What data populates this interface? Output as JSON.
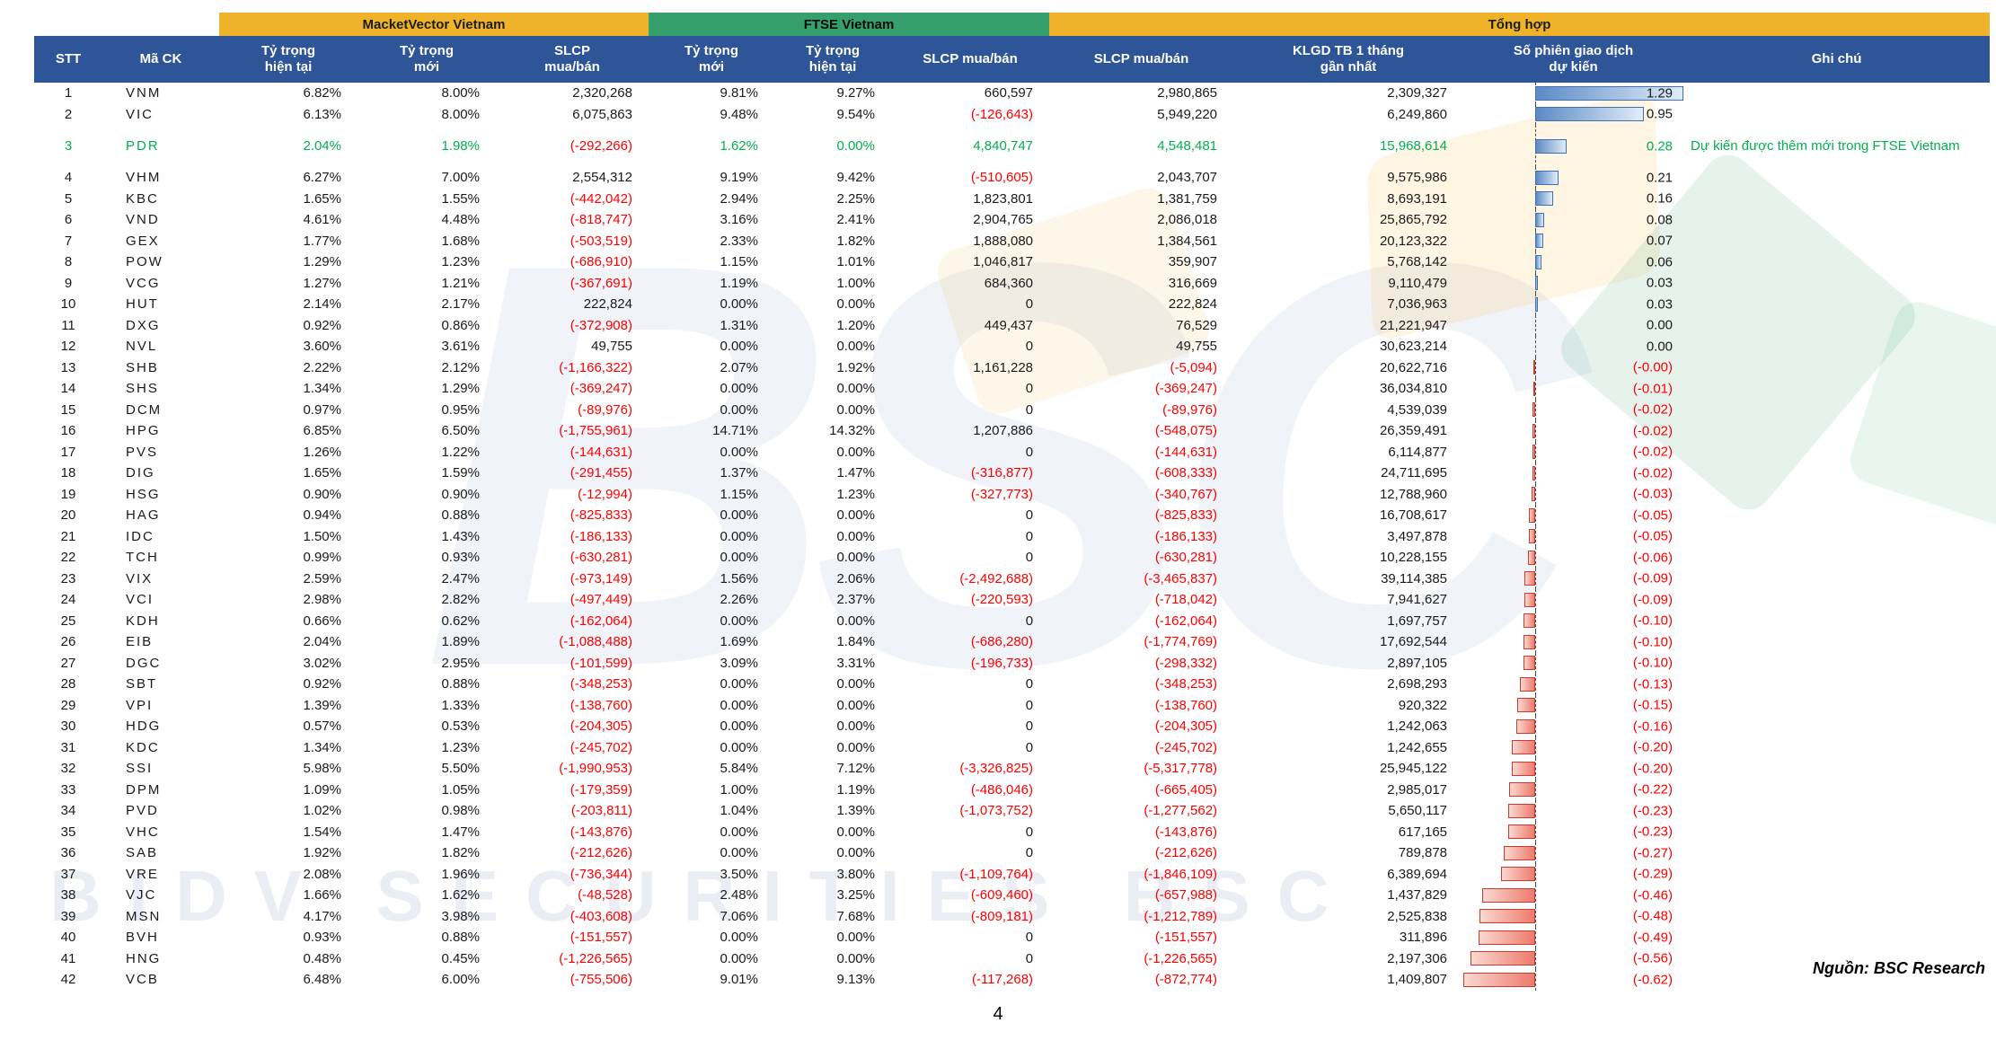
{
  "page": {
    "number": "4",
    "source_note": "Nguồn: BSC Research"
  },
  "watermark": {
    "big_text": "BSC",
    "bottom_text": "BIDV SECURITIES BSC"
  },
  "colors": {
    "header_blue": "#2e5597",
    "group_gold": "#efb32a",
    "group_green": "#35a06c",
    "negative_red": "#ff0000",
    "highlight_green": "#00b050",
    "bar_positive_border": "#3f6fb4",
    "bar_negative_border": "#cf3a2a"
  },
  "table": {
    "groups": {
      "mv": "MacketVector Vietnam",
      "ftse": "FTSE Vietnam",
      "total": "Tổng  hợp"
    },
    "header": {
      "stt": "STT",
      "ticker": "Mã CK",
      "mv_cur": "Tỷ trọng\nhiện tại",
      "mv_new": "Tỷ trọng\nmới",
      "mv_slcp": "SLCP\nmua/bán",
      "ftse_new": "Tỷ trọng\nmới",
      "ftse_cur": "Tỷ trọng\nhiện tại",
      "ftse_slcp": "SLCP mua/bán",
      "tot_slcp": "SLCP mua/bán",
      "klgd": "KLGD TB 1 tháng\ngần nhất",
      "sessions": "Số phiên giao dịch\ndự kiến",
      "note": "Ghi chú"
    },
    "rows": [
      {
        "stt": "1",
        "ticker": "VNM",
        "mv_cur": "6.82%",
        "mv_new": "8.00%",
        "mv_slcp": "2,320,268",
        "ftse_new": "9.81%",
        "ftse_cur": "9.27%",
        "ftse_slcp": "660,597",
        "tot_slcp": "2,980,865",
        "klgd": "2,309,327",
        "sessions": "1.29",
        "sessions_value": 1.29,
        "note": ""
      },
      {
        "stt": "2",
        "ticker": "VIC",
        "mv_cur": "6.13%",
        "mv_new": "8.00%",
        "mv_slcp": "6,075,863",
        "ftse_new": "9.48%",
        "ftse_cur": "9.54%",
        "ftse_slcp": "(-126,643)",
        "tot_slcp": "5,949,220",
        "klgd": "6,249,860",
        "sessions": "0.95",
        "sessions_value": 0.95,
        "note": ""
      },
      {
        "stt": "3",
        "ticker": "PDR",
        "mv_cur": "2.04%",
        "mv_new": "1.98%",
        "mv_slcp": "(-292,266)",
        "ftse_new": "1.62%",
        "ftse_cur": "0.00%",
        "ftse_slcp": "4,840,747",
        "tot_slcp": "4,548,481",
        "klgd": "15,968,614",
        "sessions": "0.28",
        "sessions_value": 0.28,
        "note": "Dự kiến được thêm mới trong FTSE Vietnam",
        "highlight": true,
        "tall": true
      },
      {
        "stt": "4",
        "ticker": "VHM",
        "mv_cur": "6.27%",
        "mv_new": "7.00%",
        "mv_slcp": "2,554,312",
        "ftse_new": "9.19%",
        "ftse_cur": "9.42%",
        "ftse_slcp": "(-510,605)",
        "tot_slcp": "2,043,707",
        "klgd": "9,575,986",
        "sessions": "0.21",
        "sessions_value": 0.21,
        "note": ""
      },
      {
        "stt": "5",
        "ticker": "KBC",
        "mv_cur": "1.65%",
        "mv_new": "1.55%",
        "mv_slcp": "(-442,042)",
        "ftse_new": "2.94%",
        "ftse_cur": "2.25%",
        "ftse_slcp": "1,823,801",
        "tot_slcp": "1,381,759",
        "klgd": "8,693,191",
        "sessions": "0.16",
        "sessions_value": 0.16,
        "note": ""
      },
      {
        "stt": "6",
        "ticker": "VND",
        "mv_cur": "4.61%",
        "mv_new": "4.48%",
        "mv_slcp": "(-818,747)",
        "ftse_new": "3.16%",
        "ftse_cur": "2.41%",
        "ftse_slcp": "2,904,765",
        "tot_slcp": "2,086,018",
        "klgd": "25,865,792",
        "sessions": "0.08",
        "sessions_value": 0.08,
        "note": ""
      },
      {
        "stt": "7",
        "ticker": "GEX",
        "mv_cur": "1.77%",
        "mv_new": "1.68%",
        "mv_slcp": "(-503,519)",
        "ftse_new": "2.33%",
        "ftse_cur": "1.82%",
        "ftse_slcp": "1,888,080",
        "tot_slcp": "1,384,561",
        "klgd": "20,123,322",
        "sessions": "0.07",
        "sessions_value": 0.07,
        "note": ""
      },
      {
        "stt": "8",
        "ticker": "POW",
        "mv_cur": "1.29%",
        "mv_new": "1.23%",
        "mv_slcp": "(-686,910)",
        "ftse_new": "1.15%",
        "ftse_cur": "1.01%",
        "ftse_slcp": "1,046,817",
        "tot_slcp": "359,907",
        "klgd": "5,768,142",
        "sessions": "0.06",
        "sessions_value": 0.06,
        "note": ""
      },
      {
        "stt": "9",
        "ticker": "VCG",
        "mv_cur": "1.27%",
        "mv_new": "1.21%",
        "mv_slcp": "(-367,691)",
        "ftse_new": "1.19%",
        "ftse_cur": "1.00%",
        "ftse_slcp": "684,360",
        "tot_slcp": "316,669",
        "klgd": "9,110,479",
        "sessions": "0.03",
        "sessions_value": 0.03,
        "note": ""
      },
      {
        "stt": "10",
        "ticker": "HUT",
        "mv_cur": "2.14%",
        "mv_new": "2.17%",
        "mv_slcp": "222,824",
        "ftse_new": "0.00%",
        "ftse_cur": "0.00%",
        "ftse_slcp": "0",
        "tot_slcp": "222,824",
        "klgd": "7,036,963",
        "sessions": "0.03",
        "sessions_value": 0.03,
        "note": ""
      },
      {
        "stt": "11",
        "ticker": "DXG",
        "mv_cur": "0.92%",
        "mv_new": "0.86%",
        "mv_slcp": "(-372,908)",
        "ftse_new": "1.31%",
        "ftse_cur": "1.20%",
        "ftse_slcp": "449,437",
        "tot_slcp": "76,529",
        "klgd": "21,221,947",
        "sessions": "0.00",
        "sessions_value": 0,
        "note": ""
      },
      {
        "stt": "12",
        "ticker": "NVL",
        "mv_cur": "3.60%",
        "mv_new": "3.61%",
        "mv_slcp": "49,755",
        "ftse_new": "0.00%",
        "ftse_cur": "0.00%",
        "ftse_slcp": "0",
        "tot_slcp": "49,755",
        "klgd": "30,623,214",
        "sessions": "0.00",
        "sessions_value": 0,
        "note": ""
      },
      {
        "stt": "13",
        "ticker": "SHB",
        "mv_cur": "2.22%",
        "mv_new": "2.12%",
        "mv_slcp": "(-1,166,322)",
        "ftse_new": "2.07%",
        "ftse_cur": "1.92%",
        "ftse_slcp": "1,161,228",
        "tot_slcp": "(-5,094)",
        "klgd": "20,622,716",
        "sessions": "(-0.00)",
        "sessions_value": -0.001,
        "note": ""
      },
      {
        "stt": "14",
        "ticker": "SHS",
        "mv_cur": "1.34%",
        "mv_new": "1.29%",
        "mv_slcp": "(-369,247)",
        "ftse_new": "0.00%",
        "ftse_cur": "0.00%",
        "ftse_slcp": "0",
        "tot_slcp": "(-369,247)",
        "klgd": "36,034,810",
        "sessions": "(-0.01)",
        "sessions_value": -0.01,
        "note": ""
      },
      {
        "stt": "15",
        "ticker": "DCM",
        "mv_cur": "0.97%",
        "mv_new": "0.95%",
        "mv_slcp": "(-89,976)",
        "ftse_new": "0.00%",
        "ftse_cur": "0.00%",
        "ftse_slcp": "0",
        "tot_slcp": "(-89,976)",
        "klgd": "4,539,039",
        "sessions": "(-0.02)",
        "sessions_value": -0.02,
        "note": ""
      },
      {
        "stt": "16",
        "ticker": "HPG",
        "mv_cur": "6.85%",
        "mv_new": "6.50%",
        "mv_slcp": "(-1,755,961)",
        "ftse_new": "14.71%",
        "ftse_cur": "14.32%",
        "ftse_slcp": "1,207,886",
        "tot_slcp": "(-548,075)",
        "klgd": "26,359,491",
        "sessions": "(-0.02)",
        "sessions_value": -0.02,
        "note": ""
      },
      {
        "stt": "17",
        "ticker": "PVS",
        "mv_cur": "1.26%",
        "mv_new": "1.22%",
        "mv_slcp": "(-144,631)",
        "ftse_new": "0.00%",
        "ftse_cur": "0.00%",
        "ftse_slcp": "0",
        "tot_slcp": "(-144,631)",
        "klgd": "6,114,877",
        "sessions": "(-0.02)",
        "sessions_value": -0.02,
        "note": ""
      },
      {
        "stt": "18",
        "ticker": "DIG",
        "mv_cur": "1.65%",
        "mv_new": "1.59%",
        "mv_slcp": "(-291,455)",
        "ftse_new": "1.37%",
        "ftse_cur": "1.47%",
        "ftse_slcp": "(-316,877)",
        "tot_slcp": "(-608,333)",
        "klgd": "24,711,695",
        "sessions": "(-0.02)",
        "sessions_value": -0.02,
        "note": ""
      },
      {
        "stt": "19",
        "ticker": "HSG",
        "mv_cur": "0.90%",
        "mv_new": "0.90%",
        "mv_slcp": "(-12,994)",
        "ftse_new": "1.15%",
        "ftse_cur": "1.23%",
        "ftse_slcp": "(-327,773)",
        "tot_slcp": "(-340,767)",
        "klgd": "12,788,960",
        "sessions": "(-0.03)",
        "sessions_value": -0.03,
        "note": ""
      },
      {
        "stt": "20",
        "ticker": "HAG",
        "mv_cur": "0.94%",
        "mv_new": "0.88%",
        "mv_slcp": "(-825,833)",
        "ftse_new": "0.00%",
        "ftse_cur": "0.00%",
        "ftse_slcp": "0",
        "tot_slcp": "(-825,833)",
        "klgd": "16,708,617",
        "sessions": "(-0.05)",
        "sessions_value": -0.05,
        "note": ""
      },
      {
        "stt": "21",
        "ticker": "IDC",
        "mv_cur": "1.50%",
        "mv_new": "1.43%",
        "mv_slcp": "(-186,133)",
        "ftse_new": "0.00%",
        "ftse_cur": "0.00%",
        "ftse_slcp": "0",
        "tot_slcp": "(-186,133)",
        "klgd": "3,497,878",
        "sessions": "(-0.05)",
        "sessions_value": -0.05,
        "note": ""
      },
      {
        "stt": "22",
        "ticker": "TCH",
        "mv_cur": "0.99%",
        "mv_new": "0.93%",
        "mv_slcp": "(-630,281)",
        "ftse_new": "0.00%",
        "ftse_cur": "0.00%",
        "ftse_slcp": "0",
        "tot_slcp": "(-630,281)",
        "klgd": "10,228,155",
        "sessions": "(-0.06)",
        "sessions_value": -0.06,
        "note": ""
      },
      {
        "stt": "23",
        "ticker": "VIX",
        "mv_cur": "2.59%",
        "mv_new": "2.47%",
        "mv_slcp": "(-973,149)",
        "ftse_new": "1.56%",
        "ftse_cur": "2.06%",
        "ftse_slcp": "(-2,492,688)",
        "tot_slcp": "(-3,465,837)",
        "klgd": "39,114,385",
        "sessions": "(-0.09)",
        "sessions_value": -0.09,
        "note": ""
      },
      {
        "stt": "24",
        "ticker": "VCI",
        "mv_cur": "2.98%",
        "mv_new": "2.82%",
        "mv_slcp": "(-497,449)",
        "ftse_new": "2.26%",
        "ftse_cur": "2.37%",
        "ftse_slcp": "(-220,593)",
        "tot_slcp": "(-718,042)",
        "klgd": "7,941,627",
        "sessions": "(-0.09)",
        "sessions_value": -0.09,
        "note": ""
      },
      {
        "stt": "25",
        "ticker": "KDH",
        "mv_cur": "0.66%",
        "mv_new": "0.62%",
        "mv_slcp": "(-162,064)",
        "ftse_new": "0.00%",
        "ftse_cur": "0.00%",
        "ftse_slcp": "0",
        "tot_slcp": "(-162,064)",
        "klgd": "1,697,757",
        "sessions": "(-0.10)",
        "sessions_value": -0.1,
        "note": ""
      },
      {
        "stt": "26",
        "ticker": "EIB",
        "mv_cur": "2.04%",
        "mv_new": "1.89%",
        "mv_slcp": "(-1,088,488)",
        "ftse_new": "1.69%",
        "ftse_cur": "1.84%",
        "ftse_slcp": "(-686,280)",
        "tot_slcp": "(-1,774,769)",
        "klgd": "17,692,544",
        "sessions": "(-0.10)",
        "sessions_value": -0.1,
        "note": ""
      },
      {
        "stt": "27",
        "ticker": "DGC",
        "mv_cur": "3.02%",
        "mv_new": "2.95%",
        "mv_slcp": "(-101,599)",
        "ftse_new": "3.09%",
        "ftse_cur": "3.31%",
        "ftse_slcp": "(-196,733)",
        "tot_slcp": "(-298,332)",
        "klgd": "2,897,105",
        "sessions": "(-0.10)",
        "sessions_value": -0.1,
        "note": ""
      },
      {
        "stt": "28",
        "ticker": "SBT",
        "mv_cur": "0.92%",
        "mv_new": "0.88%",
        "mv_slcp": "(-348,253)",
        "ftse_new": "0.00%",
        "ftse_cur": "0.00%",
        "ftse_slcp": "0",
        "tot_slcp": "(-348,253)",
        "klgd": "2,698,293",
        "sessions": "(-0.13)",
        "sessions_value": -0.13,
        "note": ""
      },
      {
        "stt": "29",
        "ticker": "VPI",
        "mv_cur": "1.39%",
        "mv_new": "1.33%",
        "mv_slcp": "(-138,760)",
        "ftse_new": "0.00%",
        "ftse_cur": "0.00%",
        "ftse_slcp": "0",
        "tot_slcp": "(-138,760)",
        "klgd": "920,322",
        "sessions": "(-0.15)",
        "sessions_value": -0.15,
        "note": ""
      },
      {
        "stt": "30",
        "ticker": "HDG",
        "mv_cur": "0.57%",
        "mv_new": "0.53%",
        "mv_slcp": "(-204,305)",
        "ftse_new": "0.00%",
        "ftse_cur": "0.00%",
        "ftse_slcp": "0",
        "tot_slcp": "(-204,305)",
        "klgd": "1,242,063",
        "sessions": "(-0.16)",
        "sessions_value": -0.16,
        "note": ""
      },
      {
        "stt": "31",
        "ticker": "KDC",
        "mv_cur": "1.34%",
        "mv_new": "1.23%",
        "mv_slcp": "(-245,702)",
        "ftse_new": "0.00%",
        "ftse_cur": "0.00%",
        "ftse_slcp": "0",
        "tot_slcp": "(-245,702)",
        "klgd": "1,242,655",
        "sessions": "(-0.20)",
        "sessions_value": -0.2,
        "note": ""
      },
      {
        "stt": "32",
        "ticker": "SSI",
        "mv_cur": "5.98%",
        "mv_new": "5.50%",
        "mv_slcp": "(-1,990,953)",
        "ftse_new": "5.84%",
        "ftse_cur": "7.12%",
        "ftse_slcp": "(-3,326,825)",
        "tot_slcp": "(-5,317,778)",
        "klgd": "25,945,122",
        "sessions": "(-0.20)",
        "sessions_value": -0.2,
        "note": ""
      },
      {
        "stt": "33",
        "ticker": "DPM",
        "mv_cur": "1.09%",
        "mv_new": "1.05%",
        "mv_slcp": "(-179,359)",
        "ftse_new": "1.00%",
        "ftse_cur": "1.19%",
        "ftse_slcp": "(-486,046)",
        "tot_slcp": "(-665,405)",
        "klgd": "2,985,017",
        "sessions": "(-0.22)",
        "sessions_value": -0.22,
        "note": ""
      },
      {
        "stt": "34",
        "ticker": "PVD",
        "mv_cur": "1.02%",
        "mv_new": "0.98%",
        "mv_slcp": "(-203,811)",
        "ftse_new": "1.04%",
        "ftse_cur": "1.39%",
        "ftse_slcp": "(-1,073,752)",
        "tot_slcp": "(-1,277,562)",
        "klgd": "5,650,117",
        "sessions": "(-0.23)",
        "sessions_value": -0.23,
        "note": ""
      },
      {
        "stt": "35",
        "ticker": "VHC",
        "mv_cur": "1.54%",
        "mv_new": "1.47%",
        "mv_slcp": "(-143,876)",
        "ftse_new": "0.00%",
        "ftse_cur": "0.00%",
        "ftse_slcp": "0",
        "tot_slcp": "(-143,876)",
        "klgd": "617,165",
        "sessions": "(-0.23)",
        "sessions_value": -0.23,
        "note": ""
      },
      {
        "stt": "36",
        "ticker": "SAB",
        "mv_cur": "1.92%",
        "mv_new": "1.82%",
        "mv_slcp": "(-212,626)",
        "ftse_new": "0.00%",
        "ftse_cur": "0.00%",
        "ftse_slcp": "0",
        "tot_slcp": "(-212,626)",
        "klgd": "789,878",
        "sessions": "(-0.27)",
        "sessions_value": -0.27,
        "note": ""
      },
      {
        "stt": "37",
        "ticker": "VRE",
        "mv_cur": "2.08%",
        "mv_new": "1.96%",
        "mv_slcp": "(-736,344)",
        "ftse_new": "3.50%",
        "ftse_cur": "3.80%",
        "ftse_slcp": "(-1,109,764)",
        "tot_slcp": "(-1,846,109)",
        "klgd": "6,389,694",
        "sessions": "(-0.29)",
        "sessions_value": -0.29,
        "note": ""
      },
      {
        "stt": "38",
        "ticker": "VJC",
        "mv_cur": "1.66%",
        "mv_new": "1.62%",
        "mv_slcp": "(-48,528)",
        "ftse_new": "2.48%",
        "ftse_cur": "3.25%",
        "ftse_slcp": "(-609,460)",
        "tot_slcp": "(-657,988)",
        "klgd": "1,437,829",
        "sessions": "(-0.46)",
        "sessions_value": -0.46,
        "note": ""
      },
      {
        "stt": "39",
        "ticker": "MSN",
        "mv_cur": "4.17%",
        "mv_new": "3.98%",
        "mv_slcp": "(-403,608)",
        "ftse_new": "7.06%",
        "ftse_cur": "7.68%",
        "ftse_slcp": "(-809,181)",
        "tot_slcp": "(-1,212,789)",
        "klgd": "2,525,838",
        "sessions": "(-0.48)",
        "sessions_value": -0.48,
        "note": ""
      },
      {
        "stt": "40",
        "ticker": "BVH",
        "mv_cur": "0.93%",
        "mv_new": "0.88%",
        "mv_slcp": "(-151,557)",
        "ftse_new": "0.00%",
        "ftse_cur": "0.00%",
        "ftse_slcp": "0",
        "tot_slcp": "(-151,557)",
        "klgd": "311,896",
        "sessions": "(-0.49)",
        "sessions_value": -0.49,
        "note": ""
      },
      {
        "stt": "41",
        "ticker": "HNG",
        "mv_cur": "0.48%",
        "mv_new": "0.45%",
        "mv_slcp": "(-1,226,565)",
        "ftse_new": "0.00%",
        "ftse_cur": "0.00%",
        "ftse_slcp": "0",
        "tot_slcp": "(-1,226,565)",
        "klgd": "2,197,306",
        "sessions": "(-0.56)",
        "sessions_value": -0.56,
        "note": ""
      },
      {
        "stt": "42",
        "ticker": "VCB",
        "mv_cur": "6.48%",
        "mv_new": "6.00%",
        "mv_slcp": "(-755,506)",
        "ftse_new": "9.01%",
        "ftse_cur": "9.13%",
        "ftse_slcp": "(-117,268)",
        "tot_slcp": "(-872,774)",
        "klgd": "1,409,807",
        "sessions": "(-0.62)",
        "sessions_value": -0.62,
        "note": ""
      }
    ]
  }
}
